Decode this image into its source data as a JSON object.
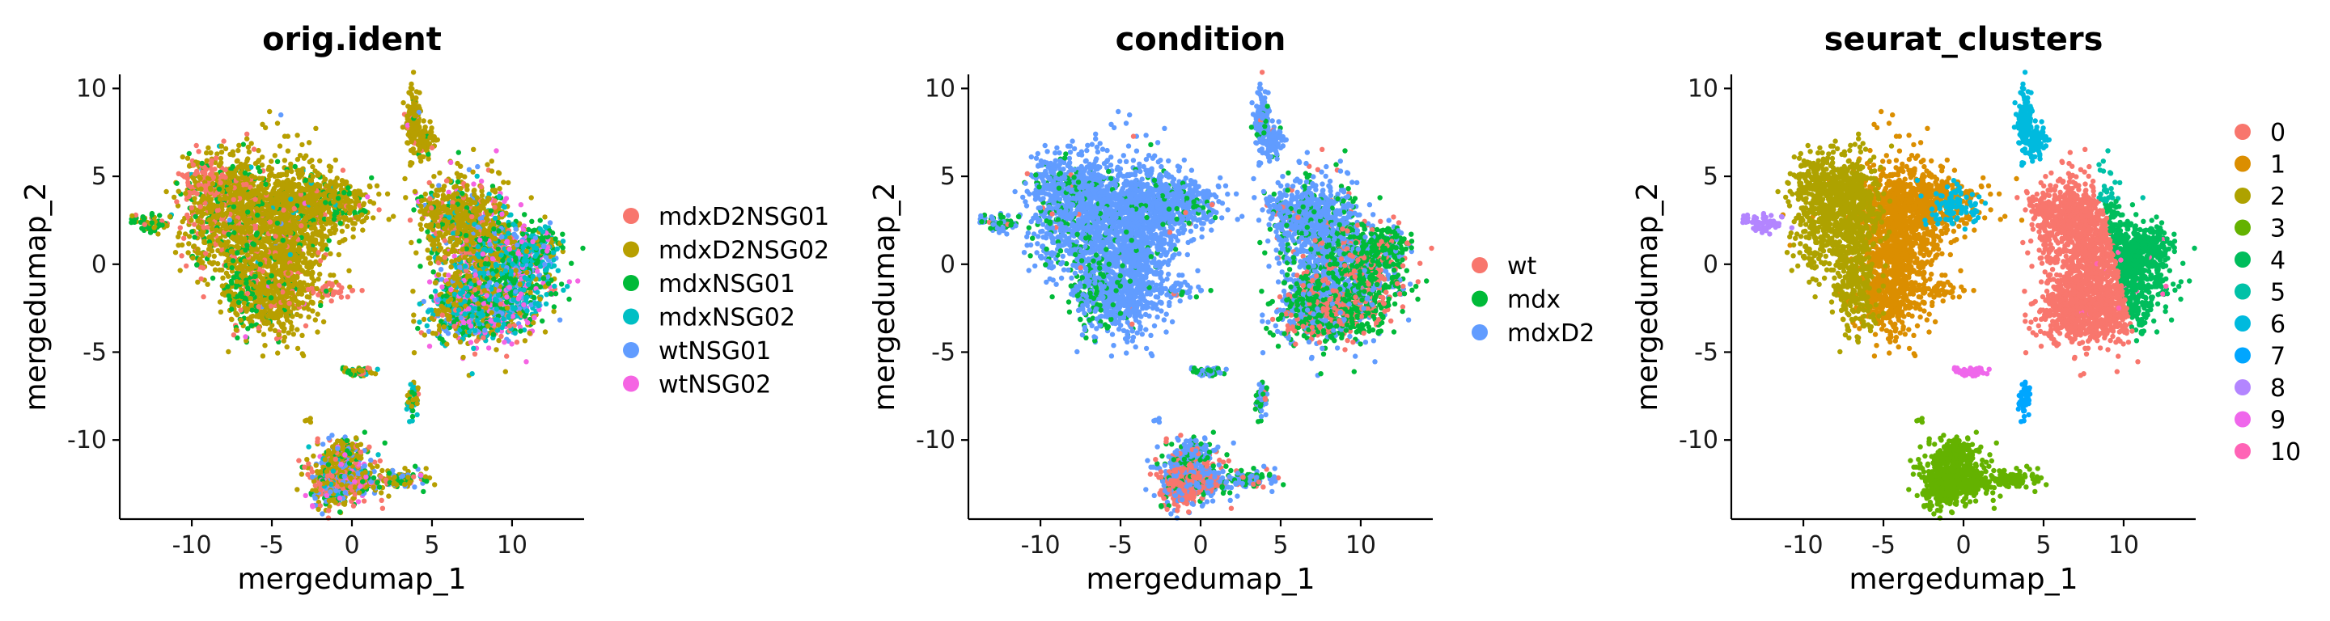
{
  "chart_data": [
    {
      "type": "scatter",
      "title": "orig.ident",
      "xlabel": "mergedumap_1",
      "ylabel": "mergedumap_2",
      "xlim": [
        -14.5,
        14.5
      ],
      "ylim": [
        -14.5,
        10.8
      ],
      "xticks": [
        -10,
        -5,
        0,
        5,
        10
      ],
      "yticks": [
        10,
        5,
        0,
        -5,
        -10
      ],
      "legend_position": "right",
      "series": [
        {
          "name": "mdxD2NSG01",
          "color": "#F8766D"
        },
        {
          "name": "mdxD2NSG02",
          "color": "#B79F00"
        },
        {
          "name": "mdxNSG01",
          "color": "#00BA38"
        },
        {
          "name": "mdxNSG02",
          "color": "#00BFC4"
        },
        {
          "name": "wtNSG01",
          "color": "#619CFF"
        },
        {
          "name": "wtNSG02",
          "color": "#F564E3"
        }
      ]
    },
    {
      "type": "scatter",
      "title": "condition",
      "xlabel": "mergedumap_1",
      "ylabel": "mergedumap_2",
      "xlim": [
        -14.5,
        14.5
      ],
      "ylim": [
        -14.5,
        10.8
      ],
      "xticks": [
        -10,
        -5,
        0,
        5,
        10
      ],
      "yticks": [
        10,
        5,
        0,
        -5,
        -10
      ],
      "legend_position": "right",
      "series": [
        {
          "name": "wt",
          "color": "#F8766D"
        },
        {
          "name": "mdx",
          "color": "#00BA38"
        },
        {
          "name": "mdxD2",
          "color": "#619CFF"
        }
      ]
    },
    {
      "type": "scatter",
      "title": "seurat_clusters",
      "xlabel": "mergedumap_1",
      "ylabel": "mergedumap_2",
      "xlim": [
        -14.5,
        14.5
      ],
      "ylim": [
        -14.5,
        10.8
      ],
      "xticks": [
        -10,
        -5,
        0,
        5,
        10
      ],
      "yticks": [
        10,
        5,
        0,
        -5,
        -10
      ],
      "legend_position": "right",
      "series": [
        {
          "name": "0",
          "color": "#F8766D"
        },
        {
          "name": "1",
          "color": "#DB8E00"
        },
        {
          "name": "2",
          "color": "#AEA200"
        },
        {
          "name": "3",
          "color": "#64B200"
        },
        {
          "name": "4",
          "color": "#00BD5C"
        },
        {
          "name": "5",
          "color": "#00C1A7"
        },
        {
          "name": "6",
          "color": "#00BADE"
        },
        {
          "name": "7",
          "color": "#00A6FF"
        },
        {
          "name": "8",
          "color": "#B385FF"
        },
        {
          "name": "9",
          "color": "#EF67EB"
        },
        {
          "name": "10",
          "color": "#FF63B6"
        }
      ]
    }
  ]
}
